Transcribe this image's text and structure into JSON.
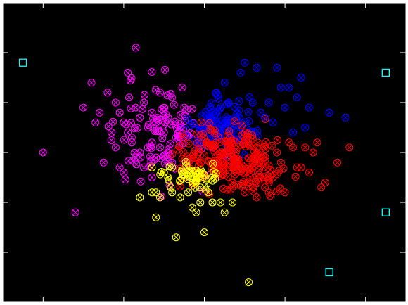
{
  "chart_data": {
    "type": "scatter",
    "title": "",
    "xlabel": "",
    "ylabel": "",
    "xlim": [
      -5,
      5
    ],
    "ylim": [
      -3,
      3
    ],
    "grid": false,
    "legend": "none",
    "x_ticks": [
      -4,
      -2,
      0,
      2,
      4
    ],
    "y_ticks": [
      -2,
      -1,
      0,
      1,
      2
    ],
    "colors": {
      "background": "#000000",
      "axes": "#ffffff",
      "magenta": "#ff00ff",
      "blue": "#0000ff",
      "red": "#ff0000",
      "yellow": "#ffff00",
      "cyan": "#00ffff"
    },
    "marker_icons": {
      "points": "circle-x-icon",
      "centroids": "square-icon"
    },
    "series": [
      {
        "color_key": "magenta",
        "marker": "circle-x",
        "x": [
          -4.0,
          -3.2,
          -1.7,
          -1.9,
          -2.8,
          -2.4,
          -2.2,
          -2.1,
          -1.5,
          -1.3,
          -1.4,
          -2.0,
          -1.9,
          -1.6,
          -1.2,
          -1.8,
          -2.3,
          -2.6,
          -2.7,
          -1.1,
          -0.8,
          -1.0,
          -0.9,
          -1.3,
          -2.2,
          -1.7,
          -1.5,
          -1.2,
          -0.7,
          -0.6,
          -1.8,
          -1.4,
          -2.5,
          -2.1,
          -3.0,
          -1.0,
          -1.1,
          -1.6,
          -2.0,
          -1.3,
          -0.9,
          -0.8,
          -1.7,
          -1.2,
          -0.5
        ],
        "y": [
          0.0,
          -1.2,
          2.1,
          1.6,
          1.4,
          1.2,
          1.0,
          0.8,
          1.0,
          0.8,
          0.5,
          0.6,
          0.4,
          0.7,
          0.6,
          0.3,
          0.4,
          0.8,
          0.6,
          1.2,
          1.1,
          0.9,
          0.7,
          0.2,
          0.1,
          -0.1,
          -0.3,
          -0.1,
          0.3,
          0.5,
          0.2,
          0.1,
          -0.2,
          -0.3,
          0.9,
          0.4,
          0.1,
          0.0,
          -0.4,
          -0.5,
          0.0,
          -0.2,
          0.9,
          0.6,
          0.9
        ],
        "density": {
          "cx": -1.1,
          "cy": 0.4,
          "sx": 0.6,
          "sy": 0.5,
          "n": 90
        }
      },
      {
        "color_key": "blue",
        "marker": "circle-x",
        "x": [
          0.5,
          0.9,
          1.0,
          1.3,
          1.8,
          2.4,
          2.1,
          1.9,
          1.2,
          1.6,
          1.5,
          2.0,
          2.6,
          3.1,
          3.5,
          2.2,
          2.5,
          1.7,
          0.3,
          0.2,
          0.6,
          1.4,
          2.3
        ],
        "y": [
          1.4,
          1.6,
          1.8,
          1.7,
          1.7,
          1.5,
          1.3,
          1.3,
          1.0,
          1.0,
          0.7,
          0.9,
          0.9,
          0.8,
          0.7,
          0.4,
          0.5,
          0.6,
          1.2,
          0.8,
          1.0,
          0.8,
          1.1
        ],
        "density": {
          "cx": 0.4,
          "cy": 0.5,
          "sx": 0.45,
          "sy": 0.25,
          "n": 120
        }
      },
      {
        "color_key": "red",
        "marker": "circle-x",
        "x": [
          1.8,
          2.2,
          2.5,
          2.7,
          2.3,
          1.9,
          1.7,
          1.5,
          1.3,
          1.0,
          2.0,
          2.4,
          2.9,
          3.3,
          3.6,
          3.0,
          2.6,
          1.2,
          1.1,
          0.8,
          2.1,
          2.8
        ],
        "y": [
          0.0,
          0.1,
          0.1,
          0.0,
          -0.3,
          -0.2,
          -0.5,
          -0.7,
          -0.9,
          -0.8,
          -0.8,
          -0.3,
          -0.7,
          -0.2,
          0.1,
          -0.6,
          -0.4,
          -0.2,
          -0.6,
          -0.4,
          0.2,
          0.2
        ],
        "density": {
          "cx": 0.6,
          "cy": -0.1,
          "sx": 0.65,
          "sy": 0.3,
          "n": 240
        }
      },
      {
        "color_key": "yellow",
        "marker": "circle-x",
        "x": [
          -1.6,
          -1.3,
          -1.2,
          -1.1,
          -0.8,
          -0.6,
          -0.4,
          -0.3,
          -0.1,
          0.2,
          0.4,
          0.5,
          -0.2,
          0.0,
          -0.7,
          -0.8,
          -1.3,
          -1.0,
          -0.3,
          -0.1,
          0.7,
          1.1,
          -1.2,
          -0.9,
          0.1
        ],
        "y": [
          -0.9,
          -0.8,
          -0.8,
          -0.9,
          -0.8,
          -0.9,
          -0.8,
          -1.1,
          -1.0,
          -1.0,
          -1.0,
          -1.2,
          -1.2,
          -1.6,
          -1.7,
          -0.3,
          -0.3,
          -0.4,
          -0.6,
          -0.7,
          -1.0,
          -2.6,
          -1.3,
          -0.5,
          -0.8
        ],
        "density": {
          "cx": -0.3,
          "cy": -0.45,
          "sx": 0.35,
          "sy": 0.12,
          "n": 45
        }
      },
      {
        "color_key": "cyan",
        "marker": "square",
        "x": [
          -4.5,
          4.5,
          4.5,
          3.1
        ],
        "y": [
          1.8,
          1.6,
          -1.2,
          -2.4
        ]
      }
    ]
  }
}
